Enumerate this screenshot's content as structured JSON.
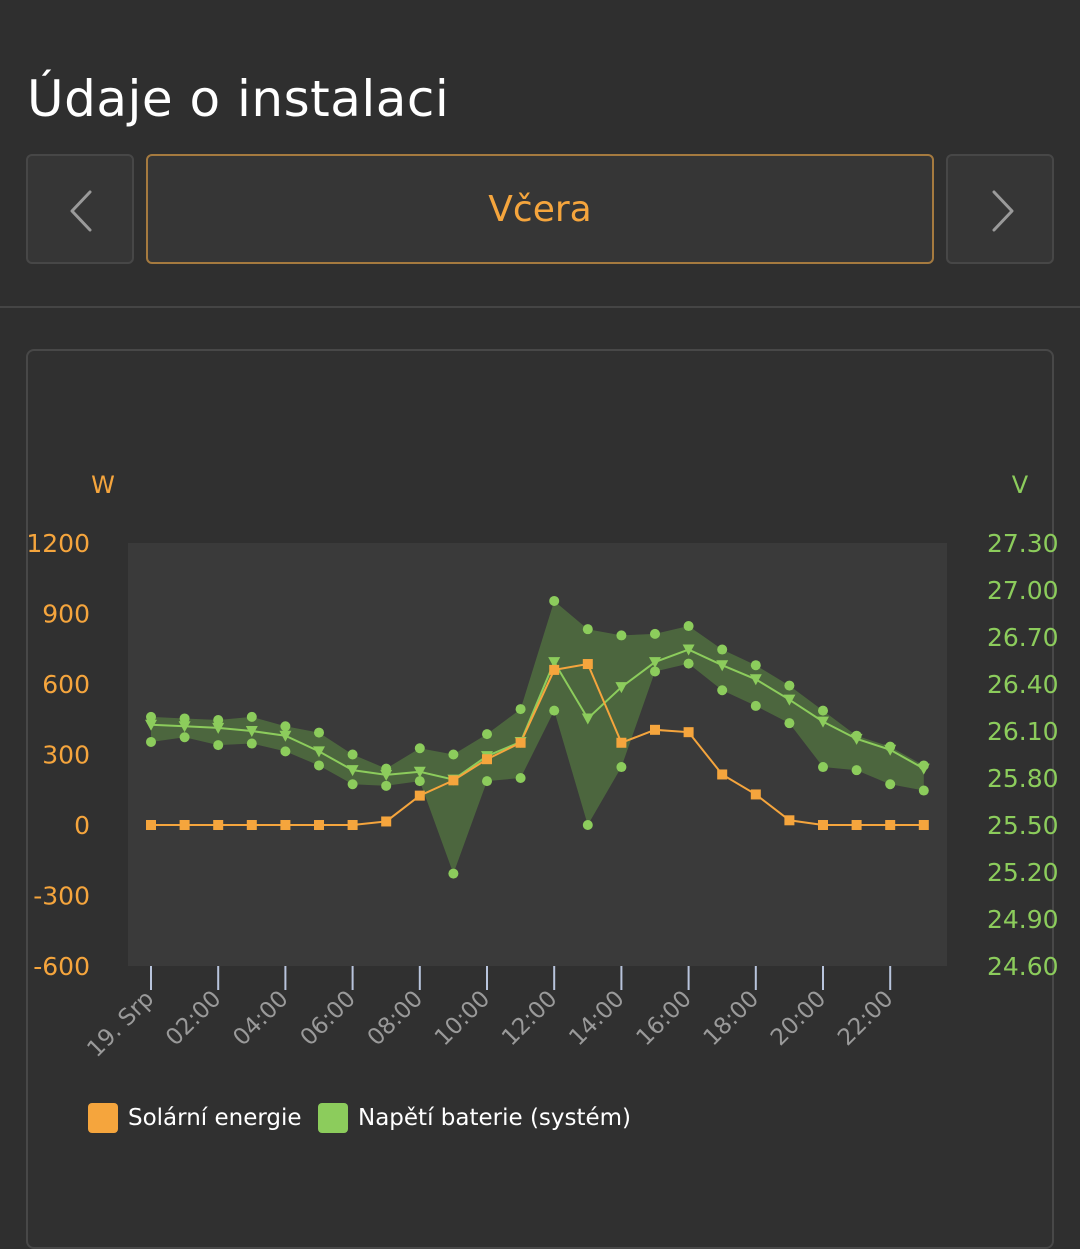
{
  "page": {
    "title": "Údaje o instalaci"
  },
  "nav": {
    "period_label": "Včera",
    "prev_icon": "chevron-left-icon",
    "next_icon": "chevron-right-icon"
  },
  "colors": {
    "solar": "#f5a53d",
    "battery": "#8ccc5c",
    "band": "#4f6b3f",
    "plot_bg": "#3a3a3a",
    "text": "#ffffff"
  },
  "chart_data": {
    "type": "line",
    "left_axis": {
      "unit": "W",
      "ylim": [
        -600,
        1200
      ],
      "ticks": [
        "1200",
        "900",
        "600",
        "300",
        "0",
        "-300",
        "-600"
      ]
    },
    "right_axis": {
      "unit": "V",
      "ylim": [
        24.6,
        27.3
      ],
      "ticks": [
        "27.30",
        "27.00",
        "26.70",
        "26.40",
        "26.10",
        "25.80",
        "25.50",
        "25.20",
        "24.90",
        "24.60"
      ]
    },
    "x_ticks": [
      "19. Srp",
      "02:00",
      "04:00",
      "06:00",
      "08:00",
      "10:00",
      "12:00",
      "14:00",
      "16:00",
      "18:00",
      "20:00",
      "22:00"
    ],
    "x_hours": [
      0,
      1,
      2,
      3,
      4,
      5,
      6,
      7,
      8,
      9,
      10,
      11,
      12,
      13,
      14,
      15,
      16,
      17,
      18,
      19,
      20,
      21,
      22,
      23
    ],
    "series": [
      {
        "name": "Solární energie",
        "axis": "left",
        "values": [
          0,
          0,
          0,
          0,
          0,
          0,
          0,
          15,
          125,
          190,
          280,
          350,
          660,
          685,
          350,
          405,
          395,
          215,
          130,
          20,
          0,
          0,
          0,
          0
        ]
      },
      {
        "name": "Napětí baterie (systém)",
        "axis": "right",
        "values": [
          26.14,
          26.13,
          26.12,
          26.1,
          26.07,
          25.97,
          25.85,
          25.82,
          25.84,
          25.79,
          25.94,
          26.03,
          26.54,
          26.18,
          26.38,
          26.54,
          26.62,
          26.52,
          26.43,
          26.3,
          26.16,
          26.05,
          25.98,
          25.86
        ],
        "max": [
          26.19,
          26.18,
          26.17,
          26.19,
          26.13,
          26.09,
          25.95,
          25.86,
          25.99,
          25.95,
          26.08,
          26.24,
          26.93,
          26.75,
          26.71,
          26.72,
          26.77,
          26.62,
          26.52,
          26.39,
          26.23,
          26.07,
          26.0,
          25.88
        ],
        "min": [
          26.03,
          26.06,
          26.01,
          26.02,
          25.97,
          25.88,
          25.76,
          25.75,
          25.78,
          25.19,
          25.78,
          25.8,
          26.23,
          25.5,
          25.87,
          26.48,
          26.53,
          26.36,
          26.26,
          26.15,
          25.87,
          25.85,
          25.76,
          25.72
        ]
      }
    ]
  }
}
